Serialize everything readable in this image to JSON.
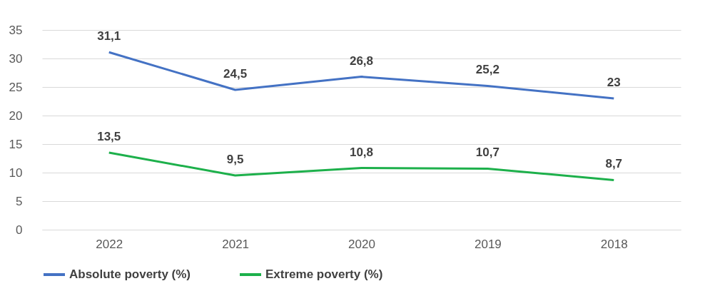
{
  "chart_data": {
    "type": "line",
    "categories": [
      "2022",
      "2021",
      "2020",
      "2019",
      "2018"
    ],
    "series": [
      {
        "name": "Absolute poverty (%)",
        "color": "#4472c4",
        "values": [
          31.1,
          24.5,
          26.8,
          25.2,
          23
        ],
        "value_labels": [
          "31,1",
          "24,5",
          "26,8",
          "25,2",
          "23"
        ]
      },
      {
        "name": "Extreme poverty (%)",
        "color": "#1db04b",
        "values": [
          13.5,
          9.5,
          10.8,
          10.7,
          8.7
        ],
        "value_labels": [
          "13,5",
          "9,5",
          "10,8",
          "10,7",
          "8,7"
        ]
      }
    ],
    "ylim": [
      0,
      35
    ],
    "yticks": [
      0,
      5,
      10,
      15,
      20,
      25,
      30,
      35
    ],
    "grid": "y",
    "legend": "bottom",
    "marker": "none",
    "line_style": "solid"
  }
}
